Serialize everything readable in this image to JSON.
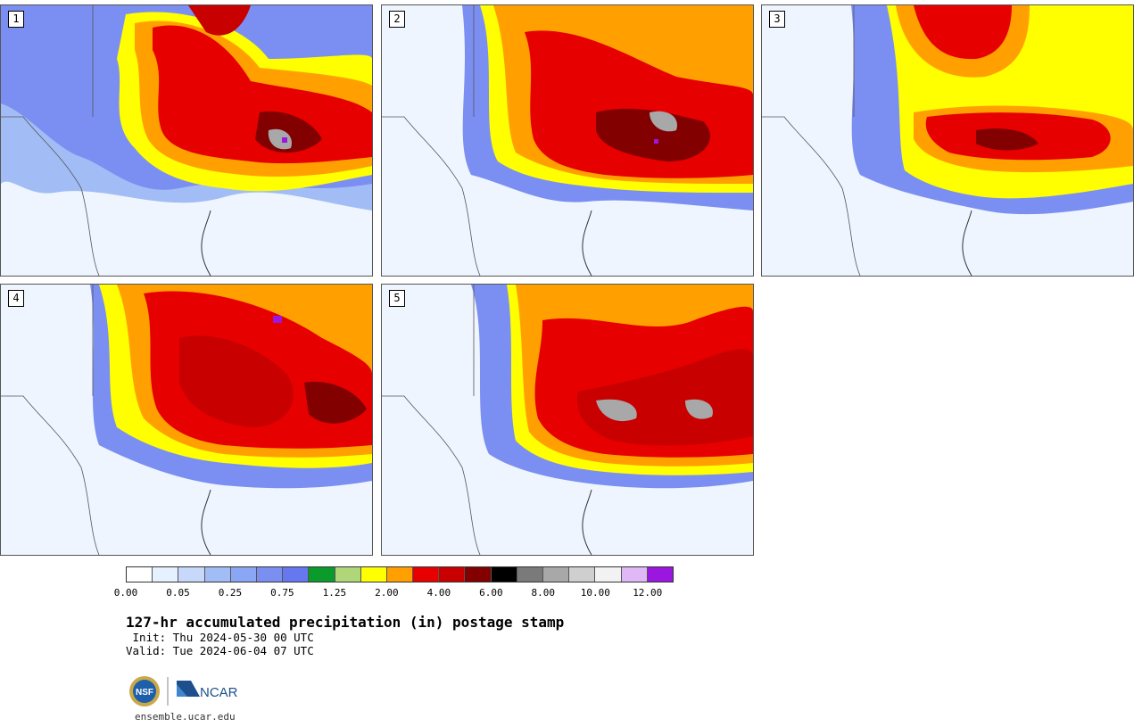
{
  "figure": {
    "title": "127-hr accumulated precipitation (in) postage stamp",
    "init": "Init: Thu 2024-05-30 00 UTC",
    "valid": "Valid: Tue 2024-06-04 07 UTC",
    "website": "ensemble.ucar.edu",
    "logos": [
      "NSF",
      "NCAR"
    ]
  },
  "members": [
    {
      "label": "1"
    },
    {
      "label": "2"
    },
    {
      "label": "3"
    },
    {
      "label": "4"
    },
    {
      "label": "5"
    }
  ],
  "colorbar": {
    "colors": [
      "#ffffff",
      "#e6f1ff",
      "#c8d8fb",
      "#a2bdf6",
      "#8aa6f4",
      "#7b8ff2",
      "#6677ef",
      "#0a9b2b",
      "#b0d67a",
      "#ffff00",
      "#ffa000",
      "#e60000",
      "#c80000",
      "#820000",
      "#000000",
      "#7a7a7a",
      "#a8a8a8",
      "#cfcfcf",
      "#f2f2f2",
      "#e0b8f5",
      "#9b17e0"
    ],
    "tick_labels": [
      "0.00",
      "0.05",
      "0.25",
      "0.75",
      "1.25",
      "2.00",
      "4.00",
      "6.00",
      "8.00",
      "10.00",
      "12.00"
    ]
  }
}
